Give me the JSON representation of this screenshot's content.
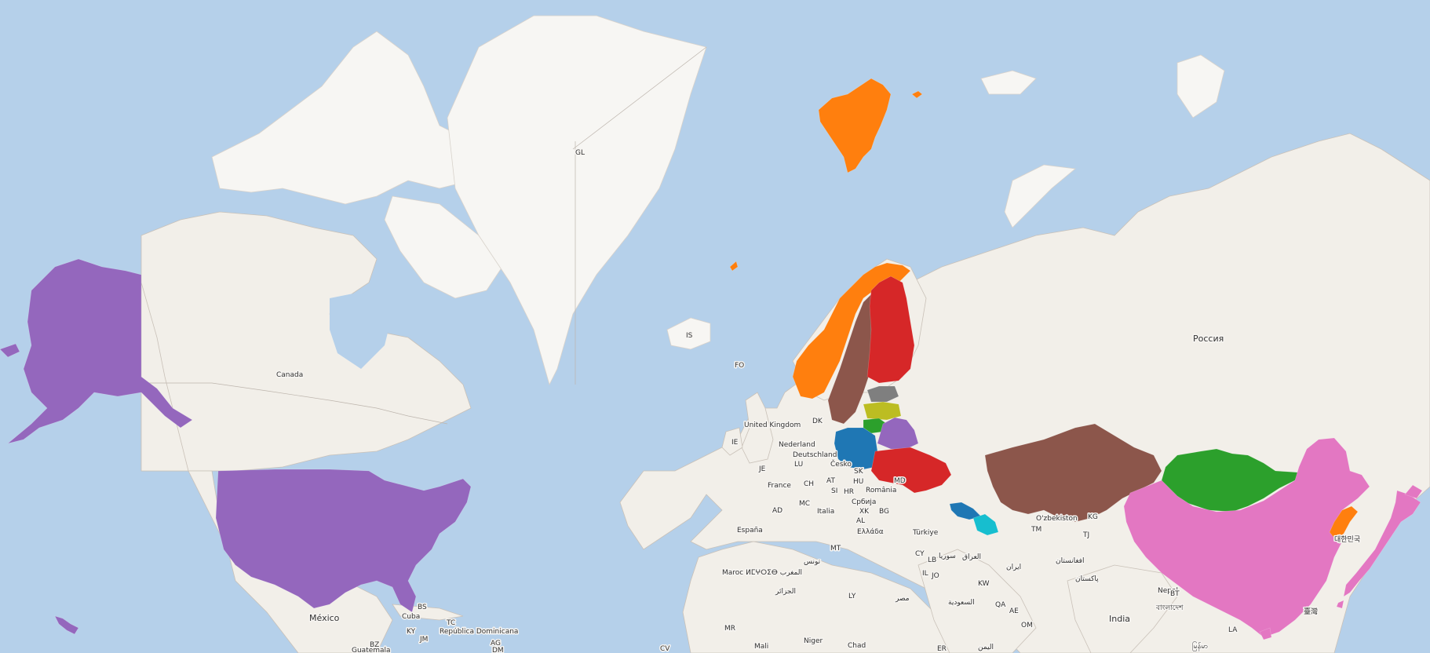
{
  "map": {
    "basemap_colors": {
      "water": "#b5d0ea",
      "land": "#f2efe9",
      "ice": "#f7f6f3"
    },
    "highlights": [
      {
        "id": "usa",
        "color": "#9467bd"
      },
      {
        "id": "svalbard",
        "color": "#ff7f0e"
      },
      {
        "id": "norway",
        "color": "#ff7f0e"
      },
      {
        "id": "sweden",
        "color": "#8c564b"
      },
      {
        "id": "finland",
        "color": "#d62728"
      },
      {
        "id": "estonia",
        "color": "#7f7f7f"
      },
      {
        "id": "latvia",
        "color": "#bcbd22"
      },
      {
        "id": "lithuania",
        "color": "#2ca02c"
      },
      {
        "id": "belarus",
        "color": "#9467bd"
      },
      {
        "id": "poland",
        "color": "#1f77b4"
      },
      {
        "id": "ukraine",
        "color": "#d62728"
      },
      {
        "id": "georgia",
        "color": "#1f77b4"
      },
      {
        "id": "azerbaijan",
        "color": "#17becf"
      },
      {
        "id": "kazakhstan",
        "color": "#8c564b"
      },
      {
        "id": "mongolia",
        "color": "#2ca02c"
      },
      {
        "id": "china",
        "color": "#e377c2"
      },
      {
        "id": "japan",
        "color": "#e377c2"
      },
      {
        "id": "korea",
        "color": "#ff7f0e"
      }
    ],
    "labels": {
      "greenland": "GL",
      "canada": "Canada",
      "iceland": "IS",
      "faroe": "FO",
      "russia": "Россия",
      "uk": "United Kingdom",
      "ireland": "IE",
      "denmark": "DK",
      "netherlands": "Nederland",
      "germany": "Deutschland",
      "luxembourg": "LU",
      "jersey": "JE",
      "france": "France",
      "switzerland": "CH",
      "austria": "AT",
      "czech": "Česko",
      "slovakia": "SK",
      "hungary": "HU",
      "slovenia": "SI",
      "croatia": "HR",
      "romania": "România",
      "moldova": "MD",
      "serbia": "Србија",
      "kosovo": "XK",
      "bulgaria": "BG",
      "albania": "AL",
      "greece": "Ελλάδα",
      "andorra": "AD",
      "monaco": "MC",
      "italy": "Italia",
      "spain": "España",
      "malta": "MT",
      "turkey": "Türkiye",
      "cyprus": "CY",
      "lebanon": "LB",
      "syria": "سوريا",
      "iraq": "العراق",
      "israel": "IL",
      "jordan": "JO",
      "kuwait": "KW",
      "iran": "ایران",
      "uzbekistan": "O'zbekiston",
      "turkmenistan": "TM",
      "tajikistan": "TJ",
      "kyrgyzstan": "KG",
      "afghanistan": "افغانستان",
      "pakistan": "پاکستان",
      "nepal": "Nepal",
      "india": "India",
      "bangladesh": "বাংলাদেশ",
      "bhutan": "BT",
      "korea": "대한민국",
      "taiwan": "臺灣",
      "laos": "LA",
      "myanmar": "မြန်မာ",
      "morocco": "Maroc ⵍⵎⵖⵔⵉⴱ المغرب",
      "tunisia": "تونس",
      "algeria": "الجزائر",
      "libya": "LY",
      "egypt": "مصر",
      "saudi": "السعودية",
      "qatar": "QA",
      "uae": "AE",
      "oman": "OM",
      "mauritania": "MR",
      "mali": "Mali",
      "niger": "Niger",
      "chad": "Chad",
      "eritrea": "ER",
      "yemen": "اليمن",
      "capeverde": "CV",
      "mexico": "México",
      "cuba": "Cuba",
      "bahamas": "BS",
      "turks": "TC",
      "dominican": "República Dominicana",
      "cayman": "KY",
      "jamaica": "JM",
      "belize": "BZ",
      "guatemala": "Guatemala",
      "antigua": "AG",
      "dominica": "DM"
    }
  }
}
